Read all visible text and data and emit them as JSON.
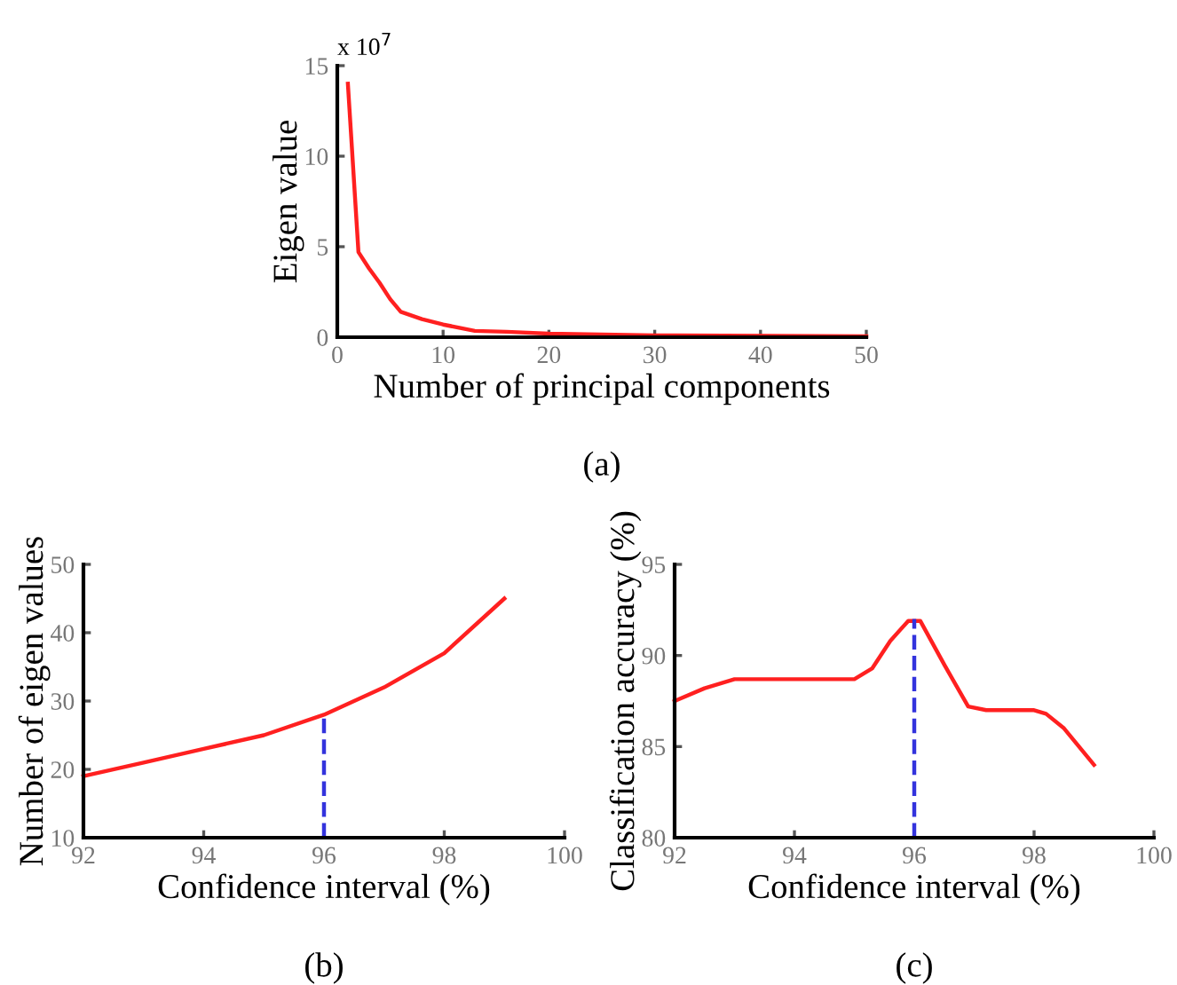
{
  "chart_data": [
    {
      "type": "line",
      "xlabel": "Number of principal components",
      "ylabel": "Eigen value",
      "annotations": [
        "x 10$^{7}$",
        "(a)"
      ],
      "xlim": [
        0,
        50
      ],
      "ylim": [
        0,
        15
      ],
      "xticks": [
        0,
        10,
        20,
        30,
        40,
        50
      ],
      "yticks": [
        0,
        5,
        10,
        15
      ],
      "grid": false,
      "series": [
        {
          "color": "#ff2020",
          "x": [
            1,
            2,
            3,
            4,
            5,
            6,
            8,
            10,
            13,
            16,
            20,
            30,
            50
          ],
          "values": [
            14,
            4.7,
            3.8,
            3.0,
            2.1,
            1.4,
            1.0,
            0.7,
            0.35,
            0.3,
            0.2,
            0.1,
            0.05
          ]
        }
      ]
    },
    {
      "type": "line",
      "xlabel": "Confidence interval (%)",
      "ylabel": "Number of eigen values",
      "annotations": [
        "(b)"
      ],
      "xlim": [
        92,
        100
      ],
      "ylim": [
        10,
        50
      ],
      "xticks": [
        92,
        94,
        96,
        98,
        100
      ],
      "yticks": [
        10,
        20,
        30,
        40,
        50
      ],
      "grid": false,
      "series": [
        {
          "color": "#ff2020",
          "x": [
            92,
            93,
            94,
            95,
            96,
            97,
            98,
            99
          ],
          "values": [
            19,
            21,
            23,
            25,
            28,
            32,
            37,
            45
          ]
        },
        {
          "color": "#3333dd",
          "line_style": "dashed",
          "x": [
            96,
            96
          ],
          "values": [
            10,
            28
          ]
        }
      ]
    },
    {
      "type": "line",
      "xlabel": "Confidence interval (%)",
      "ylabel": "Classification accuracy (%)",
      "annotations": [
        "(c)"
      ],
      "xlim": [
        92,
        100
      ],
      "ylim": [
        80,
        95
      ],
      "xticks": [
        92,
        94,
        96,
        98,
        100
      ],
      "yticks": [
        80,
        85,
        90,
        95
      ],
      "grid": false,
      "series": [
        {
          "color": "#ff2020",
          "x": [
            92,
            92.5,
            93,
            94,
            95,
            95.3,
            95.6,
            95.9,
            96.1,
            96.5,
            96.9,
            97.2,
            98,
            98.2,
            98.5,
            99
          ],
          "values": [
            87.5,
            88.2,
            88.7,
            88.7,
            88.7,
            89.3,
            90.8,
            91.9,
            91.9,
            89.5,
            87.2,
            87,
            87,
            86.8,
            86,
            84
          ]
        },
        {
          "color": "#3333dd",
          "line_style": "dashed",
          "x": [
            96,
            96
          ],
          "values": [
            80,
            92
          ]
        }
      ]
    }
  ]
}
